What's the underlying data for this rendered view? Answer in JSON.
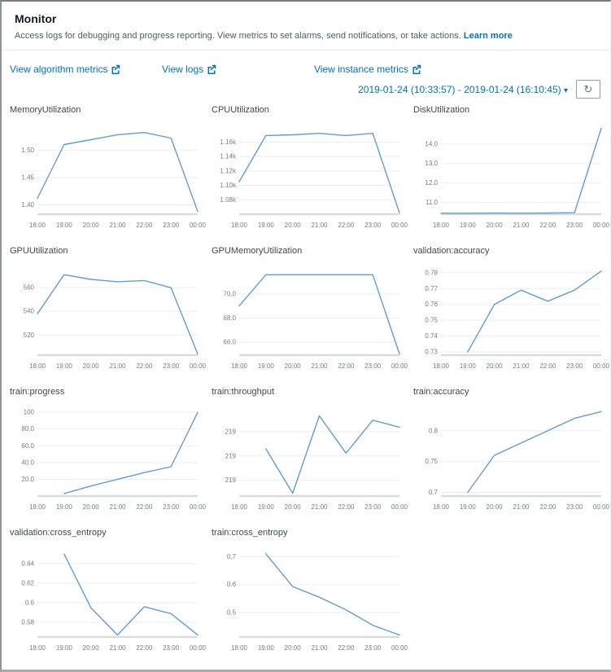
{
  "header": {
    "title": "Monitor",
    "description": "Access logs for debugging and progress reporting. View metrics to set alarms, send notifications, or take actions.",
    "learn_more": "Learn more"
  },
  "links": [
    {
      "label": "View algorithm metrics"
    },
    {
      "label": "View logs"
    },
    {
      "label": "View instance metrics"
    }
  ],
  "toolbar": {
    "date_range": "2019-01-24 (10:33:57) - 2019-01-24 (16:10:45)",
    "caret": "▾",
    "refresh_glyph": "↻"
  },
  "colors": {
    "link": "#0073bb",
    "line": "#5f9cd6",
    "grid": "#ededee",
    "axis": "#d9dcdc",
    "tick_text": "#767d84"
  },
  "categories": [
    "18:00",
    "19:00",
    "20:00",
    "21:00",
    "22:00",
    "23:00",
    "00:00"
  ],
  "chart_data": [
    {
      "type": "line",
      "title": "MemoryUtilization",
      "values": [
        1.412,
        1.51,
        1.519,
        1.528,
        1.532,
        1.522,
        1.388
      ],
      "yticks": [
        {
          "label": "1.50",
          "value": 1.5
        },
        {
          "label": "1.45",
          "value": 1.45
        },
        {
          "label": "1.40",
          "value": 1.4
        }
      ],
      "ylim": [
        1.383,
        1.545
      ]
    },
    {
      "type": "line",
      "title": "CPUUtilization",
      "values": [
        1105,
        1169,
        1170,
        1172,
        1169,
        1172,
        1062
      ],
      "yticks": [
        {
          "label": "1.16k",
          "value": 1160
        },
        {
          "label": "1.14k",
          "value": 1140
        },
        {
          "label": "1.12k",
          "value": 1120
        },
        {
          "label": "1.10k",
          "value": 1100
        },
        {
          "label": "1.08k",
          "value": 1080
        }
      ],
      "ylim": [
        1060,
        1183
      ]
    },
    {
      "type": "line",
      "title": "DiskUtilization",
      "values": [
        10.45,
        10.45,
        10.46,
        10.45,
        10.46,
        10.48,
        14.8
      ],
      "yticks": [
        {
          "label": "14.0",
          "value": 14.0
        },
        {
          "label": "13.0",
          "value": 13.0
        },
        {
          "label": "12.0",
          "value": 12.0
        },
        {
          "label": "11.0",
          "value": 11.0
        }
      ],
      "ylim": [
        10.4,
        14.95
      ]
    },
    {
      "type": "line",
      "title": "GPUUtilization",
      "values": [
        538,
        571,
        567,
        565,
        566,
        560,
        504
      ],
      "yticks": [
        {
          "label": "560",
          "value": 560
        },
        {
          "label": "540",
          "value": 540
        },
        {
          "label": "520",
          "value": 520
        }
      ],
      "ylim": [
        503,
        578
      ]
    },
    {
      "type": "line",
      "title": "GPUMemoryUtilization",
      "values": [
        69.0,
        71.6,
        71.6,
        71.6,
        71.6,
        71.6,
        65.0
      ],
      "yticks": [
        {
          "label": "70.0",
          "value": 70.0
        },
        {
          "label": "68.0",
          "value": 68.0
        },
        {
          "label": "66.0",
          "value": 66.0
        }
      ],
      "ylim": [
        64.9,
        72.3
      ]
    },
    {
      "type": "line",
      "title": "validation:accuracy",
      "values": [
        null,
        0.73,
        0.76,
        0.769,
        0.762,
        0.769,
        0.781
      ],
      "yticks": [
        {
          "label": "0.78",
          "value": 0.78
        },
        {
          "label": "0.77",
          "value": 0.77
        },
        {
          "label": "0.76",
          "value": 0.76
        },
        {
          "label": "0.75",
          "value": 0.75
        },
        {
          "label": "0.74",
          "value": 0.74
        },
        {
          "label": "0.73",
          "value": 0.73
        }
      ],
      "ylim": [
        0.728,
        0.784
      ]
    },
    {
      "type": "line",
      "title": "train:progress",
      "values": [
        null,
        3,
        12,
        20,
        28,
        35,
        100
      ],
      "yticks": [
        {
          "label": "100",
          "value": 100
        },
        {
          "label": "80.0",
          "value": 80
        },
        {
          "label": "60.0",
          "value": 60
        },
        {
          "label": "40.0",
          "value": 40
        },
        {
          "label": "20.0",
          "value": 20
        }
      ],
      "ylim": [
        0,
        106
      ]
    },
    {
      "type": "line",
      "title": "train:throughput",
      "values": [
        null,
        219.13,
        218.82,
        219.36,
        219.1,
        219.33,
        219.28
      ],
      "yticks": [
        {
          "label": "219",
          "value": 219.25
        },
        {
          "label": "219",
          "value": 219.08
        },
        {
          "label": "219",
          "value": 218.91
        }
      ],
      "ylim": [
        218.8,
        219.42
      ]
    },
    {
      "type": "line",
      "title": "train:accuracy",
      "values": [
        null,
        0.7,
        0.76,
        0.78,
        0.8,
        0.82,
        0.831
      ],
      "yticks": [
        {
          "label": "0.8",
          "value": 0.8
        },
        {
          "label": "0.75",
          "value": 0.75
        },
        {
          "label": "0.7",
          "value": 0.7
        }
      ],
      "ylim": [
        0.694,
        0.838
      ]
    },
    {
      "type": "line",
      "title": "validation:cross_entropy",
      "values": [
        null,
        0.65,
        0.595,
        0.567,
        0.596,
        0.589,
        0.567
      ],
      "yticks": [
        {
          "label": "0.64",
          "value": 0.64
        },
        {
          "label": "0.62",
          "value": 0.62
        },
        {
          "label": "0.6",
          "value": 0.6
        },
        {
          "label": "0.58",
          "value": 0.58
        }
      ],
      "ylim": [
        0.565,
        0.656
      ]
    },
    {
      "type": "line",
      "title": "train:cross_entropy",
      "values": [
        null,
        0.71,
        0.593,
        0.555,
        0.51,
        0.455,
        0.42
      ],
      "yticks": [
        {
          "label": "0.7",
          "value": 0.7
        },
        {
          "label": "0.6",
          "value": 0.6
        },
        {
          "label": "0.5",
          "value": 0.5
        }
      ],
      "ylim": [
        0.413,
        0.73
      ]
    }
  ]
}
